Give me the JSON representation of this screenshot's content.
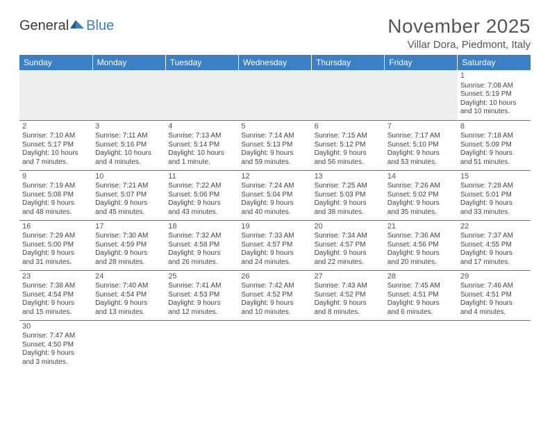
{
  "logo": {
    "text_dark": "General",
    "text_blue": "Blue"
  },
  "title": "November 2025",
  "location": "Villar Dora, Piedmont, Italy",
  "colors": {
    "header_bg": "#3b7fc4",
    "header_fg": "#ffffff",
    "grid_line": "#3b7fc4",
    "leading_bg": "#eeeeee",
    "text": "#444444"
  },
  "weekdays": [
    "Sunday",
    "Monday",
    "Tuesday",
    "Wednesday",
    "Thursday",
    "Friday",
    "Saturday"
  ],
  "weeks": [
    [
      null,
      null,
      null,
      null,
      null,
      null,
      {
        "d": "1",
        "sr": "Sunrise: 7:08 AM",
        "ss": "Sunset: 5:19 PM",
        "dl1": "Daylight: 10 hours",
        "dl2": "and 10 minutes."
      }
    ],
    [
      {
        "d": "2",
        "sr": "Sunrise: 7:10 AM",
        "ss": "Sunset: 5:17 PM",
        "dl1": "Daylight: 10 hours",
        "dl2": "and 7 minutes."
      },
      {
        "d": "3",
        "sr": "Sunrise: 7:11 AM",
        "ss": "Sunset: 5:16 PM",
        "dl1": "Daylight: 10 hours",
        "dl2": "and 4 minutes."
      },
      {
        "d": "4",
        "sr": "Sunrise: 7:13 AM",
        "ss": "Sunset: 5:14 PM",
        "dl1": "Daylight: 10 hours",
        "dl2": "and 1 minute."
      },
      {
        "d": "5",
        "sr": "Sunrise: 7:14 AM",
        "ss": "Sunset: 5:13 PM",
        "dl1": "Daylight: 9 hours",
        "dl2": "and 59 minutes."
      },
      {
        "d": "6",
        "sr": "Sunrise: 7:15 AM",
        "ss": "Sunset: 5:12 PM",
        "dl1": "Daylight: 9 hours",
        "dl2": "and 56 minutes."
      },
      {
        "d": "7",
        "sr": "Sunrise: 7:17 AM",
        "ss": "Sunset: 5:10 PM",
        "dl1": "Daylight: 9 hours",
        "dl2": "and 53 minutes."
      },
      {
        "d": "8",
        "sr": "Sunrise: 7:18 AM",
        "ss": "Sunset: 5:09 PM",
        "dl1": "Daylight: 9 hours",
        "dl2": "and 51 minutes."
      }
    ],
    [
      {
        "d": "9",
        "sr": "Sunrise: 7:19 AM",
        "ss": "Sunset: 5:08 PM",
        "dl1": "Daylight: 9 hours",
        "dl2": "and 48 minutes."
      },
      {
        "d": "10",
        "sr": "Sunrise: 7:21 AM",
        "ss": "Sunset: 5:07 PM",
        "dl1": "Daylight: 9 hours",
        "dl2": "and 45 minutes."
      },
      {
        "d": "11",
        "sr": "Sunrise: 7:22 AM",
        "ss": "Sunset: 5:06 PM",
        "dl1": "Daylight: 9 hours",
        "dl2": "and 43 minutes."
      },
      {
        "d": "12",
        "sr": "Sunrise: 7:24 AM",
        "ss": "Sunset: 5:04 PM",
        "dl1": "Daylight: 9 hours",
        "dl2": "and 40 minutes."
      },
      {
        "d": "13",
        "sr": "Sunrise: 7:25 AM",
        "ss": "Sunset: 5:03 PM",
        "dl1": "Daylight: 9 hours",
        "dl2": "and 38 minutes."
      },
      {
        "d": "14",
        "sr": "Sunrise: 7:26 AM",
        "ss": "Sunset: 5:02 PM",
        "dl1": "Daylight: 9 hours",
        "dl2": "and 35 minutes."
      },
      {
        "d": "15",
        "sr": "Sunrise: 7:28 AM",
        "ss": "Sunset: 5:01 PM",
        "dl1": "Daylight: 9 hours",
        "dl2": "and 33 minutes."
      }
    ],
    [
      {
        "d": "16",
        "sr": "Sunrise: 7:29 AM",
        "ss": "Sunset: 5:00 PM",
        "dl1": "Daylight: 9 hours",
        "dl2": "and 31 minutes."
      },
      {
        "d": "17",
        "sr": "Sunrise: 7:30 AM",
        "ss": "Sunset: 4:59 PM",
        "dl1": "Daylight: 9 hours",
        "dl2": "and 28 minutes."
      },
      {
        "d": "18",
        "sr": "Sunrise: 7:32 AM",
        "ss": "Sunset: 4:58 PM",
        "dl1": "Daylight: 9 hours",
        "dl2": "and 26 minutes."
      },
      {
        "d": "19",
        "sr": "Sunrise: 7:33 AM",
        "ss": "Sunset: 4:57 PM",
        "dl1": "Daylight: 9 hours",
        "dl2": "and 24 minutes."
      },
      {
        "d": "20",
        "sr": "Sunrise: 7:34 AM",
        "ss": "Sunset: 4:57 PM",
        "dl1": "Daylight: 9 hours",
        "dl2": "and 22 minutes."
      },
      {
        "d": "21",
        "sr": "Sunrise: 7:36 AM",
        "ss": "Sunset: 4:56 PM",
        "dl1": "Daylight: 9 hours",
        "dl2": "and 20 minutes."
      },
      {
        "d": "22",
        "sr": "Sunrise: 7:37 AM",
        "ss": "Sunset: 4:55 PM",
        "dl1": "Daylight: 9 hours",
        "dl2": "and 17 minutes."
      }
    ],
    [
      {
        "d": "23",
        "sr": "Sunrise: 7:38 AM",
        "ss": "Sunset: 4:54 PM",
        "dl1": "Daylight: 9 hours",
        "dl2": "and 15 minutes."
      },
      {
        "d": "24",
        "sr": "Sunrise: 7:40 AM",
        "ss": "Sunset: 4:54 PM",
        "dl1": "Daylight: 9 hours",
        "dl2": "and 13 minutes."
      },
      {
        "d": "25",
        "sr": "Sunrise: 7:41 AM",
        "ss": "Sunset: 4:53 PM",
        "dl1": "Daylight: 9 hours",
        "dl2": "and 12 minutes."
      },
      {
        "d": "26",
        "sr": "Sunrise: 7:42 AM",
        "ss": "Sunset: 4:52 PM",
        "dl1": "Daylight: 9 hours",
        "dl2": "and 10 minutes."
      },
      {
        "d": "27",
        "sr": "Sunrise: 7:43 AM",
        "ss": "Sunset: 4:52 PM",
        "dl1": "Daylight: 9 hours",
        "dl2": "and 8 minutes."
      },
      {
        "d": "28",
        "sr": "Sunrise: 7:45 AM",
        "ss": "Sunset: 4:51 PM",
        "dl1": "Daylight: 9 hours",
        "dl2": "and 6 minutes."
      },
      {
        "d": "29",
        "sr": "Sunrise: 7:46 AM",
        "ss": "Sunset: 4:51 PM",
        "dl1": "Daylight: 9 hours",
        "dl2": "and 4 minutes."
      }
    ],
    [
      {
        "d": "30",
        "sr": "Sunrise: 7:47 AM",
        "ss": "Sunset: 4:50 PM",
        "dl1": "Daylight: 9 hours",
        "dl2": "and 3 minutes."
      },
      null,
      null,
      null,
      null,
      null,
      null
    ]
  ]
}
